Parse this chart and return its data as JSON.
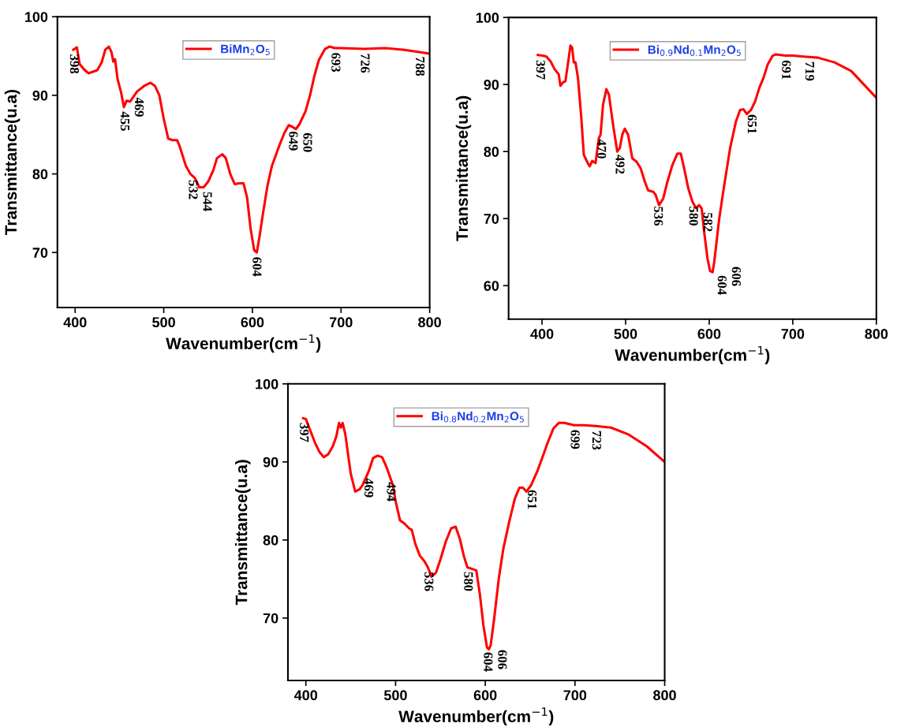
{
  "chart_data": [
    {
      "type": "line",
      "xlabel": "Wavenumber(cm$^{−1}$)",
      "ylabel": "Transmittance(u.a)",
      "xlim": [
        380,
        800
      ],
      "ylim": [
        63,
        100
      ],
      "xticks": [
        400,
        500,
        600,
        700,
        800
      ],
      "yticks": [
        70,
        80,
        90,
        100
      ],
      "legend": "top",
      "grid": false,
      "series": [
        {
          "name": "BiMn$_{2}$O$_{5}$",
          "color": "#ff0000",
          "x": [
            398,
            402,
            405,
            410,
            415,
            420,
            425,
            430,
            434,
            438,
            441,
            443,
            445,
            448,
            452,
            455,
            458,
            462,
            470,
            478,
            485,
            490,
            495,
            500,
            505,
            510,
            515,
            518,
            525,
            530,
            535,
            540,
            545,
            550,
            556,
            560,
            566,
            570,
            575,
            580,
            585,
            590,
            594,
            598,
            602,
            605,
            608,
            612,
            617,
            622,
            630,
            636,
            641,
            645,
            649,
            653,
            660,
            665,
            670,
            675,
            682,
            687,
            693,
            700,
            726,
            750,
            770,
            788,
            800
          ],
          "values": [
            95.8,
            96.1,
            94,
            93.3,
            92.8,
            93,
            93.2,
            94.2,
            95.8,
            96.2,
            95.5,
            94.3,
            94.6,
            92,
            90.3,
            88.5,
            89.3,
            89.2,
            90.5,
            91.2,
            91.6,
            91.2,
            90,
            87,
            84.5,
            84.3,
            84.3,
            83.5,
            81,
            80,
            79.5,
            78.3,
            78.3,
            79,
            80.5,
            82,
            82.5,
            82,
            80,
            78.7,
            78.8,
            78.8,
            77,
            73,
            70.3,
            70,
            72,
            75,
            78.5,
            81,
            83.5,
            85.2,
            86.2,
            86,
            85.7,
            86.3,
            88,
            90,
            92.5,
            94.5,
            95.9,
            96.2,
            96,
            96,
            95.9,
            96,
            95.8,
            95.5,
            95.3
          ]
        }
      ],
      "annotations": [
        {
          "text": "398",
          "x": 398,
          "y": 95.8
        },
        {
          "text": "455",
          "x": 455,
          "y": 88.5
        },
        {
          "text": "469",
          "x": 469,
          "y": 90.3
        },
        {
          "text": "532",
          "x": 532,
          "y": 79.8
        },
        {
          "text": "544",
          "x": 544,
          "y": 78.3
        },
        {
          "text": "604",
          "x": 604,
          "y": 70
        },
        {
          "text": "649",
          "x": 645,
          "y": 86
        },
        {
          "text": "650",
          "x": 650,
          "y": 85.8
        },
        {
          "text": "693",
          "x": 693,
          "y": 96
        },
        {
          "text": "726",
          "x": 726,
          "y": 95.9
        },
        {
          "text": "788",
          "x": 788,
          "y": 95.5
        }
      ]
    },
    {
      "type": "line",
      "xlabel": "Wavenumber(cm$^{−1}$)",
      "ylabel": "Transmittance(u.a)",
      "xlim": [
        360,
        800
      ],
      "ylim": [
        55,
        100
      ],
      "xticks": [
        400,
        500,
        600,
        700,
        800
      ],
      "yticks": [
        60,
        70,
        80,
        90,
        100
      ],
      "legend": "top",
      "grid": false,
      "series": [
        {
          "name": "Bi$_{0.9}$Nd$_{0.1}$Mn$_{2}$O$_{5}$",
          "color": "#ff0000",
          "x": [
            395,
            400,
            405,
            410,
            415,
            420,
            422,
            425,
            428,
            432,
            434,
            436,
            438,
            440,
            443,
            447,
            450,
            455,
            457,
            460,
            464,
            468,
            470,
            473,
            477,
            480,
            485,
            490,
            493,
            496,
            499,
            503,
            508,
            513,
            518,
            523,
            527,
            533,
            536,
            540,
            545,
            550,
            556,
            562,
            566,
            570,
            575,
            580,
            584,
            588,
            591,
            594,
            598,
            601,
            604,
            606,
            612,
            618,
            625,
            632,
            637,
            641,
            645,
            650,
            655,
            660,
            665,
            670,
            676,
            680,
            691,
            700,
            719,
            730,
            750,
            770,
            785,
            800
          ],
          "values": [
            94.4,
            94.3,
            94.2,
            93.5,
            92.3,
            91.5,
            89.8,
            90.3,
            90.5,
            94,
            95.8,
            95.5,
            93.3,
            93.3,
            91,
            85,
            79.5,
            78.2,
            77.8,
            78.6,
            78.3,
            82,
            82.5,
            87,
            89.3,
            88.5,
            84,
            80,
            80.5,
            82.5,
            83.4,
            82.5,
            79,
            78.5,
            77.5,
            75.5,
            74.2,
            74,
            73.5,
            72,
            73,
            75.5,
            78,
            79.7,
            79.7,
            77.5,
            74.5,
            72.5,
            71.6,
            72,
            71.5,
            68,
            64,
            62.2,
            62,
            63.5,
            70,
            75,
            80.5,
            84.5,
            86.2,
            86.3,
            85.6,
            86.2,
            87.5,
            89.5,
            91,
            93,
            94.3,
            94.5,
            94.3,
            94.3,
            94.1,
            94,
            93.3,
            92,
            90,
            88
          ]
        }
      ],
      "annotations": [
        {
          "text": "397",
          "x": 397,
          "y": 94.3
        },
        {
          "text": "470",
          "x": 470,
          "y": 82.5
        },
        {
          "text": "492",
          "x": 492,
          "y": 80.2
        },
        {
          "text": "536",
          "x": 538,
          "y": 72.5
        },
        {
          "text": "580",
          "x": 580,
          "y": 72.5
        },
        {
          "text": "582",
          "x": 584,
          "y": 71.6
        },
        {
          "text": "604",
          "x": 601,
          "y": 62.2
        },
        {
          "text": "606",
          "x": 606,
          "y": 63.5
        },
        {
          "text": "651",
          "x": 650,
          "y": 86.2
        },
        {
          "text": "691",
          "x": 691,
          "y": 94.3
        },
        {
          "text": "719",
          "x": 719,
          "y": 94.1
        }
      ]
    },
    {
      "type": "line",
      "xlabel": "Wavenumber(cm$^{−1}$)",
      "ylabel": "Transmittance(u.a)",
      "xlim": [
        380,
        800
      ],
      "ylim": [
        62,
        100
      ],
      "xticks": [
        400,
        500,
        600,
        700,
        800
      ],
      "yticks": [
        70,
        80,
        90,
        100
      ],
      "legend": "top",
      "grid": false,
      "series": [
        {
          "name": "Bi$_{0.8}$Nd$_{0.2}$Mn$_{2}$O$_{5}$",
          "color": "#ff0000",
          "x": [
            397,
            400,
            405,
            410,
            415,
            420,
            425,
            430,
            434,
            437,
            439,
            441,
            444,
            447,
            450,
            455,
            460,
            463,
            467,
            470,
            475,
            480,
            485,
            490,
            494,
            497,
            500,
            505,
            510,
            515,
            518,
            522,
            527,
            532,
            536,
            540,
            545,
            550,
            556,
            562,
            567,
            572,
            576,
            580,
            585,
            590,
            594,
            598,
            602,
            604,
            606,
            610,
            615,
            620,
            627,
            633,
            638,
            642,
            646,
            651,
            658,
            665,
            670,
            676,
            682,
            688,
            699,
            710,
            723,
            740,
            760,
            780,
            800
          ],
          "values": [
            95.6,
            95.5,
            94,
            92.5,
            91.3,
            90.6,
            91,
            92,
            93.3,
            95,
            94.4,
            95,
            93.5,
            91,
            88.5,
            86.2,
            86.5,
            87,
            88,
            88.8,
            90.5,
            90.8,
            90.6,
            89.3,
            88,
            87,
            85,
            82.5,
            82.1,
            81.5,
            81.3,
            79.5,
            78,
            77.3,
            76.5,
            75.3,
            75.8,
            77.5,
            79.8,
            81.5,
            81.7,
            80,
            78,
            76.5,
            76.3,
            76.1,
            73,
            69,
            66.2,
            66,
            66.5,
            70,
            75,
            78.8,
            82.5,
            85.3,
            86.7,
            86.7,
            86.2,
            87,
            88.8,
            91,
            92.6,
            94.3,
            95,
            95,
            94.7,
            94.7,
            94.6,
            94.4,
            93.5,
            92,
            90
          ]
        }
      ],
      "annotations": [
        {
          "text": "397",
          "x": 397,
          "y": 95.6
        },
        {
          "text": "469",
          "x": 469,
          "y": 88.5
        },
        {
          "text": "494",
          "x": 494,
          "y": 88
        },
        {
          "text": "536",
          "x": 536,
          "y": 76.5
        },
        {
          "text": "580",
          "x": 580,
          "y": 76.5
        },
        {
          "text": "604",
          "x": 602,
          "y": 66.2
        },
        {
          "text": "606",
          "x": 606,
          "y": 66.5
        },
        {
          "text": "651",
          "x": 651,
          "y": 87
        },
        {
          "text": "699",
          "x": 699,
          "y": 94.7
        },
        {
          "text": "723",
          "x": 723,
          "y": 94.6
        }
      ]
    }
  ]
}
